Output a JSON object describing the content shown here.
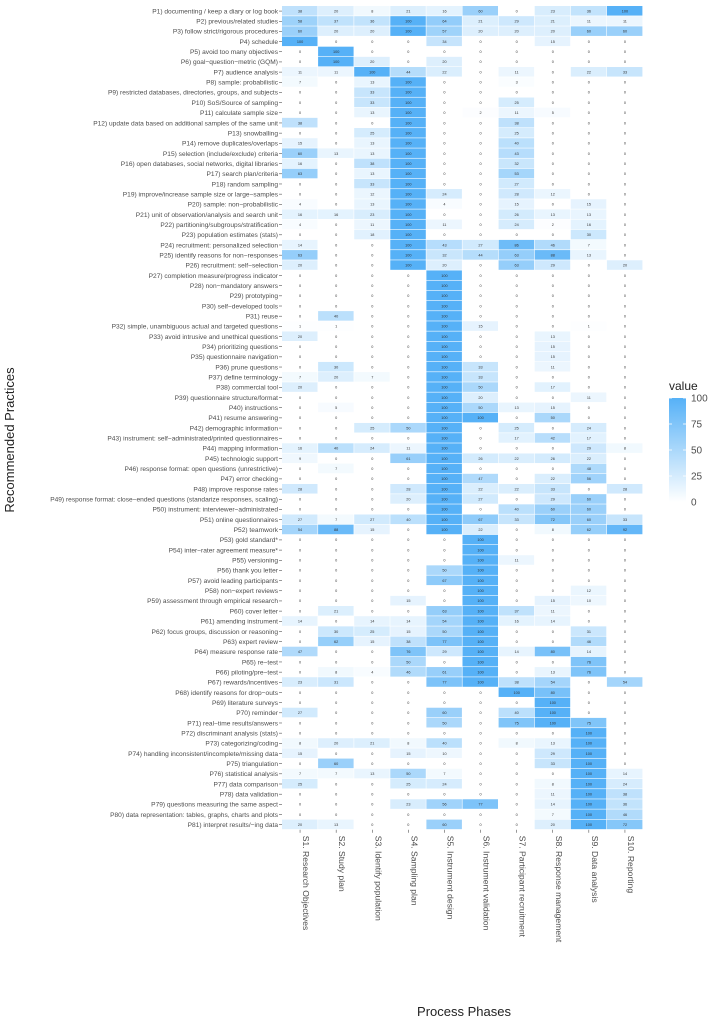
{
  "chart_data": {
    "type": "heatmap",
    "title": "",
    "xlabel": "Process Phases",
    "ylabel": "Recommended Practices",
    "columns": [
      "S1. Research Objectives",
      "S2. Study plan",
      "S3. Identify population",
      "S4. Sampling plan",
      "S5. Instrument design",
      "S6. Instrument validation",
      "S7. Participant recruitment",
      "S8. Response management",
      "S9. Data analysis",
      "S10. Reporting"
    ],
    "rows": [
      "P1) documenting / keep a diary or log book",
      "P2) previous/related studies",
      "P3) follow strict/rigorous procedures",
      "P4) schedule",
      "P5) avoid too many objectives",
      "P6) goal−question−metric (GQM)",
      "P7) audience analysis",
      "P8) sample: probabilistic",
      "P9) restricted databases, directories, groups, and subjects",
      "P10) SoS/Source of sampling",
      "P11) calculate sample size",
      "P12) update data based on additional samples of the same unit",
      "P13) snowballing",
      "P14) remove duplicates/overlaps",
      "P15) selection (include/exclude) criteria",
      "P16) open databases, social networks, digital libraries",
      "P17) search plan/criteria",
      "P18) random sampling",
      "P19) improve/increase sample size or large−samples",
      "P20) sample: non−probabilistic",
      "P21) unit of observation/analysis and search unit",
      "P22) partitioning/subgroups/stratification",
      "P23) population estimates (stats)",
      "P24) recruitment: personalized selection",
      "P25) identify reasons for non−responses",
      "P26) recruitment: self−selection",
      "P27) completion measure/progress indicator",
      "P28) non−mandatory answers",
      "P29) prototyping",
      "P30) self−developed tools",
      "P31) reuse",
      "P32) simple, unambiguous actual and targeted questions",
      "P33) avoid intrusive and unethical questions",
      "P34) prioritizing questions",
      "P35) questionnaire navigation",
      "P36) prune questions",
      "P37) define terminology",
      "P38) commercial tool",
      "P39) questionnaire structure/format",
      "P40) instructions",
      "P41) resume answering",
      "P42) demographic information",
      "P43) instrument: self−administrated/printed questionnaires",
      "P44) mapping information",
      "P45) technologic support",
      "P46) response format: open questions (unrestrictive)",
      "P47) error checking",
      "P48) improve response rates",
      "P49) response format: close−ended questions (standarize responses, scaling)",
      "P50) instrument: interviewer−administrated",
      "P51) online questionnaires",
      "P52) teamwork",
      "P53) gold standard*",
      "P54) inter−rater agreement measure*",
      "P55) versioning",
      "P56) thank you letter",
      "P57) avoid leading participants",
      "P58) non−expert reviews",
      "P59) assessment through empirical research",
      "P60) cover letter",
      "P61) amending instrument",
      "P62) focus groups, discussion or reasoning",
      "P63) expert review",
      "P64) measure response rate",
      "P65) re−test",
      "P66) piloting/pre−test",
      "P67) rewards/incentives",
      "P68) identify reasons for drop−outs",
      "P69) literature surveys",
      "P70) reminder",
      "P71) real−time results/answers",
      "P72) discriminant analysis (stats)",
      "P73) categorizing/coding",
      "P74) handling inconsistent/incomplete/missing data",
      "P75) triangulation",
      "P76) statistical analysis",
      "P77) data comparison",
      "P78) data validation",
      "P79) questions measuring the same aspect",
      "P80) data representation: tables, graphs, charts and plots",
      "P81) interpret results/−ing data"
    ],
    "values": [
      [
        38,
        20,
        8,
        21,
        16,
        60,
        0,
        23,
        36,
        100
      ],
      [
        58,
        37,
        36,
        100,
        64,
        21,
        29,
        21,
        11,
        11
      ],
      [
        60,
        20,
        20,
        100,
        57,
        20,
        20,
        20,
        60,
        60
      ],
      [
        100,
        0,
        0,
        0,
        34,
        0,
        0,
        15,
        0,
        0
      ],
      [
        0,
        100,
        0,
        0,
        0,
        0,
        0,
        0,
        0,
        0
      ],
      [
        0,
        100,
        20,
        0,
        20,
        0,
        0,
        0,
        0,
        0
      ],
      [
        11,
        11,
        100,
        44,
        22,
        0,
        11,
        0,
        22,
        33
      ],
      [
        7,
        0,
        13,
        100,
        0,
        0,
        3,
        0,
        0,
        0
      ],
      [
        0,
        0,
        33,
        100,
        0,
        0,
        0,
        0,
        0,
        0
      ],
      [
        0,
        0,
        33,
        100,
        0,
        0,
        25,
        0,
        0,
        0
      ],
      [
        0,
        0,
        13,
        100,
        0,
        2,
        11,
        5,
        0,
        0
      ],
      [
        38,
        0,
        0,
        100,
        0,
        0,
        38,
        0,
        0,
        0
      ],
      [
        0,
        0,
        25,
        100,
        0,
        0,
        25,
        0,
        0,
        0
      ],
      [
        15,
        0,
        13,
        100,
        0,
        0,
        40,
        0,
        0,
        0
      ],
      [
        60,
        13,
        13,
        100,
        0,
        0,
        43,
        0,
        0,
        0
      ],
      [
        16,
        0,
        38,
        100,
        0,
        0,
        32,
        0,
        0,
        0
      ],
      [
        63,
        0,
        13,
        100,
        0,
        0,
        53,
        0,
        0,
        0
      ],
      [
        0,
        0,
        33,
        100,
        0,
        0,
        27,
        0,
        0,
        0
      ],
      [
        0,
        0,
        12,
        100,
        24,
        0,
        28,
        12,
        0,
        0
      ],
      [
        4,
        0,
        13,
        100,
        4,
        0,
        15,
        0,
        15,
        0
      ],
      [
        16,
        16,
        23,
        100,
        0,
        0,
        26,
        13,
        13,
        0
      ],
      [
        4,
        0,
        11,
        100,
        11,
        0,
        24,
        2,
        16,
        0
      ],
      [
        0,
        0,
        18,
        100,
        0,
        0,
        0,
        0,
        30,
        0
      ],
      [
        14,
        0,
        0,
        100,
        43,
        27,
        86,
        46,
        7,
        0
      ],
      [
        63,
        0,
        0,
        100,
        32,
        44,
        63,
        88,
        13,
        0
      ],
      [
        20,
        0,
        0,
        100,
        20,
        0,
        63,
        29,
        0,
        20
      ],
      [
        0,
        0,
        0,
        0,
        100,
        0,
        0,
        0,
        0,
        0
      ],
      [
        0,
        0,
        0,
        0,
        100,
        0,
        0,
        0,
        0,
        0
      ],
      [
        0,
        0,
        0,
        0,
        100,
        0,
        0,
        0,
        0,
        0
      ],
      [
        0,
        0,
        0,
        0,
        100,
        0,
        0,
        0,
        0,
        0
      ],
      [
        0,
        40,
        0,
        0,
        100,
        0,
        0,
        0,
        0,
        0
      ],
      [
        1,
        1,
        0,
        0,
        100,
        15,
        0,
        0,
        1,
        0
      ],
      [
        20,
        0,
        0,
        0,
        100,
        0,
        0,
        13,
        0,
        0
      ],
      [
        0,
        0,
        0,
        0,
        100,
        0,
        0,
        15,
        0,
        0
      ],
      [
        0,
        0,
        0,
        0,
        100,
        0,
        0,
        15,
        0,
        0
      ],
      [
        0,
        30,
        0,
        0,
        100,
        33,
        0,
        11,
        0,
        0
      ],
      [
        7,
        20,
        7,
        0,
        100,
        33,
        0,
        0,
        0,
        0
      ],
      [
        20,
        0,
        0,
        0,
        100,
        50,
        0,
        17,
        0,
        0
      ],
      [
        0,
        0,
        0,
        0,
        100,
        20,
        0,
        0,
        11,
        0
      ],
      [
        0,
        5,
        0,
        0,
        100,
        50,
        13,
        15,
        0,
        0
      ],
      [
        0,
        0,
        0,
        0,
        100,
        100,
        0,
        50,
        0,
        0
      ],
      [
        0,
        0,
        25,
        50,
        100,
        0,
        25,
        0,
        24,
        0
      ],
      [
        0,
        0,
        0,
        0,
        100,
        0,
        17,
        42,
        17,
        0
      ],
      [
        16,
        40,
        24,
        11,
        100,
        0,
        0,
        0,
        29,
        8
      ],
      [
        9,
        0,
        0,
        61,
        100,
        26,
        22,
        26,
        22,
        0
      ],
      [
        0,
        7,
        0,
        0,
        100,
        0,
        0,
        0,
        48,
        0
      ],
      [
        0,
        0,
        0,
        0,
        100,
        47,
        0,
        22,
        56,
        0
      ],
      [
        28,
        0,
        0,
        28,
        100,
        22,
        22,
        33,
        0,
        28
      ],
      [
        0,
        0,
        0,
        20,
        100,
        27,
        0,
        29,
        60,
        0
      ],
      [
        0,
        0,
        0,
        0,
        100,
        0,
        40,
        60,
        60,
        0
      ],
      [
        27,
        7,
        27,
        40,
        100,
        67,
        33,
        72,
        60,
        33
      ],
      [
        54,
        88,
        15,
        0,
        100,
        22,
        0,
        8,
        62,
        92
      ],
      [
        0,
        0,
        0,
        0,
        0,
        100,
        0,
        0,
        0,
        0
      ],
      [
        0,
        0,
        0,
        0,
        0,
        100,
        0,
        0,
        0,
        0
      ],
      [
        0,
        0,
        0,
        0,
        0,
        100,
        11,
        0,
        0,
        0
      ],
      [
        0,
        0,
        0,
        0,
        50,
        100,
        0,
        0,
        0,
        0
      ],
      [
        0,
        0,
        0,
        0,
        67,
        100,
        0,
        0,
        0,
        0
      ],
      [
        0,
        0,
        0,
        0,
        0,
        100,
        0,
        0,
        12,
        0
      ],
      [
        0,
        0,
        0,
        15,
        0,
        100,
        0,
        15,
        10,
        0
      ],
      [
        0,
        21,
        0,
        0,
        63,
        100,
        37,
        11,
        0,
        0
      ],
      [
        14,
        0,
        14,
        14,
        54,
        100,
        16,
        14,
        0,
        0
      ],
      [
        0,
        30,
        25,
        15,
        50,
        100,
        0,
        0,
        31,
        0
      ],
      [
        0,
        62,
        15,
        38,
        77,
        100,
        0,
        0,
        46,
        0
      ],
      [
        47,
        0,
        0,
        76,
        29,
        100,
        14,
        80,
        14,
        0
      ],
      [
        0,
        0,
        0,
        50,
        0,
        100,
        0,
        0,
        76,
        0
      ],
      [
        0,
        8,
        4,
        46,
        61,
        100,
        0,
        13,
        76,
        0
      ],
      [
        23,
        31,
        0,
        0,
        77,
        100,
        38,
        54,
        0,
        54
      ],
      [
        0,
        0,
        0,
        0,
        0,
        0,
        100,
        80,
        0,
        0
      ],
      [
        0,
        0,
        0,
        0,
        0,
        0,
        0,
        100,
        0,
        0
      ],
      [
        27,
        0,
        0,
        0,
        60,
        0,
        40,
        100,
        0,
        0
      ],
      [
        0,
        0,
        0,
        0,
        50,
        0,
        75,
        100,
        75,
        0
      ],
      [
        0,
        0,
        0,
        0,
        0,
        0,
        0,
        0,
        100,
        0
      ],
      [
        8,
        20,
        21,
        8,
        40,
        0,
        8,
        13,
        100,
        0
      ],
      [
        15,
        0,
        0,
        15,
        10,
        0,
        0,
        29,
        100,
        0
      ],
      [
        0,
        60,
        0,
        0,
        0,
        0,
        0,
        33,
        100,
        0
      ],
      [
        7,
        7,
        13,
        50,
        7,
        0,
        0,
        0,
        100,
        14
      ],
      [
        25,
        0,
        0,
        25,
        24,
        0,
        0,
        8,
        100,
        24
      ],
      [
        0,
        0,
        0,
        0,
        0,
        0,
        0,
        11,
        100,
        38
      ],
      [
        0,
        0,
        0,
        23,
        56,
        77,
        0,
        14,
        100,
        36
      ],
      [
        0,
        0,
        0,
        0,
        0,
        0,
        0,
        7,
        100,
        46
      ],
      [
        20,
        13,
        0,
        0,
        60,
        0,
        0,
        20,
        100,
        72
      ]
    ],
    "scale": {
      "min": 0,
      "max": 100,
      "low_color": "#ffffff",
      "high_color": "#56b1f7"
    },
    "legend": {
      "title": "value",
      "ticks": [
        0,
        25,
        50,
        75,
        100
      ],
      "position": "right"
    }
  }
}
